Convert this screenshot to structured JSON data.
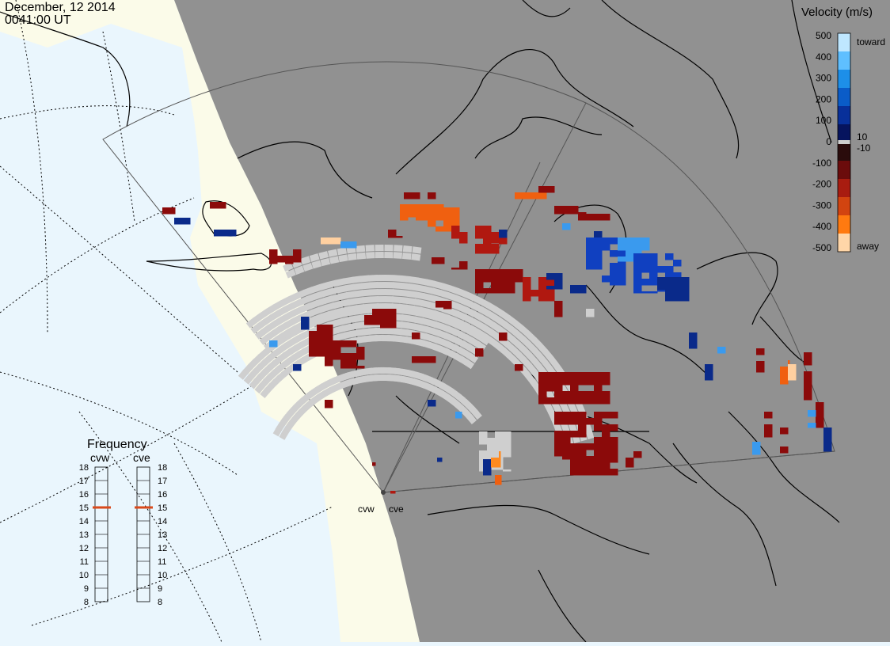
{
  "header": {
    "date": "December, 12 2014",
    "time": "0041:00 UT"
  },
  "colors": {
    "ocean": "#eaf6fd",
    "land_day": "#fbfbe9",
    "land_night": "#919191",
    "ground_scatter": "#cfcfcf",
    "grid": "#000000"
  },
  "velocity_colorbar": {
    "title": "Velocity (m/s)",
    "tick_labels": [
      "500",
      "400",
      "300",
      "200",
      "100",
      "0",
      "-100",
      "-200",
      "-300",
      "-400",
      "-500"
    ],
    "right_labels": [
      "toward",
      "10",
      "-10",
      "away"
    ],
    "colors": [
      "#bfe7ff",
      "#5fbfff",
      "#1d8fe8",
      "#0a5cc8",
      "#08309a",
      "#06145e",
      "#2a0c0c",
      "#6b0c0c",
      "#a81c10",
      "#d24410",
      "#ff7a10",
      "#ffd6a8"
    ]
  },
  "frequency_panel": {
    "title": "Frequency",
    "radar_left": "cvw",
    "radar_right": "cve",
    "levels": [
      "18",
      "17",
      "16",
      "15",
      "14",
      "13",
      "12",
      "11",
      "10",
      "9",
      "8"
    ],
    "cvw_value": 15,
    "cve_value": 15,
    "marker_color": "#d94a1c"
  },
  "radar_sites": [
    {
      "label": "cvw"
    },
    {
      "label": "cve"
    }
  ]
}
